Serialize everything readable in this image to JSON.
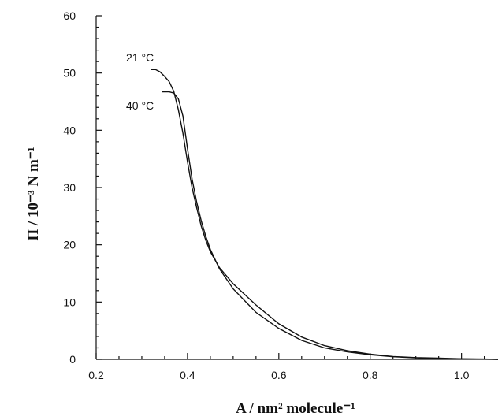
{
  "chart_data": {
    "type": "line",
    "title": "",
    "xlabel": "A / nm² molecule⁻¹",
    "ylabel": "Π / 10⁻³ N m⁻¹",
    "xlim": [
      0.2,
      1.08
    ],
    "ylim": [
      0,
      60
    ],
    "x_ticks": [
      "0.2",
      "0.4",
      "0.6",
      "0.8",
      "1.0"
    ],
    "y_ticks": [
      "0",
      "10",
      "20",
      "30",
      "40",
      "50",
      "60"
    ],
    "grid": false,
    "annotations": [
      "21 °C",
      "40 °C"
    ],
    "series": [
      {
        "name": "21 °C",
        "x": [
          0.32,
          0.33,
          0.34,
          0.35,
          0.36,
          0.37,
          0.38,
          0.39,
          0.4,
          0.41,
          0.42,
          0.43,
          0.44,
          0.45,
          0.47,
          0.5,
          0.55,
          0.6,
          0.65,
          0.7,
          0.75,
          0.8,
          0.85,
          0.9,
          0.95,
          1.0,
          1.05,
          1.08
        ],
        "y": [
          50.6,
          50.6,
          50.2,
          49.4,
          48.5,
          46.8,
          43.6,
          39.5,
          34.5,
          30.0,
          26.5,
          23.3,
          20.8,
          18.8,
          16.0,
          13.2,
          9.5,
          6.2,
          3.9,
          2.4,
          1.5,
          0.9,
          0.5,
          0.3,
          0.2,
          0.1,
          0.05,
          0.0
        ]
      },
      {
        "name": "40 °C",
        "x": [
          0.345,
          0.35,
          0.36,
          0.37,
          0.38,
          0.39,
          0.4,
          0.41,
          0.42,
          0.43,
          0.44,
          0.45,
          0.47,
          0.5,
          0.55,
          0.6,
          0.65,
          0.7,
          0.75,
          0.8,
          0.85,
          0.9,
          0.95,
          1.0,
          1.05,
          1.08
        ],
        "y": [
          46.7,
          46.7,
          46.7,
          46.5,
          45.5,
          42.5,
          36.8,
          31.5,
          27.5,
          24.2,
          21.5,
          19.2,
          15.8,
          12.3,
          8.2,
          5.4,
          3.3,
          2.0,
          1.3,
          0.8,
          0.45,
          0.25,
          0.15,
          0.08,
          0.03,
          0.0
        ]
      }
    ]
  }
}
